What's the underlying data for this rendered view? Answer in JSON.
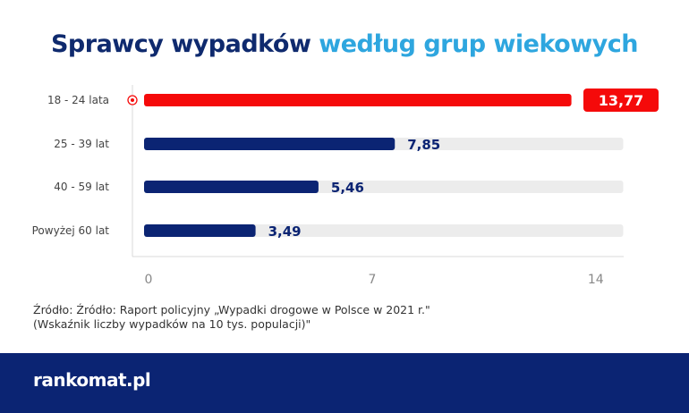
{
  "chart_data": {
    "type": "bar",
    "orientation": "horizontal",
    "title_part1": "Sprawcy wypadków",
    "title_part2": "według grup wiekowych",
    "categories": [
      "18 - 24 lata",
      "25 - 39 lat",
      "40 - 59 lat",
      "Powyżej 60 lat"
    ],
    "values": [
      13.77,
      7.85,
      5.46,
      3.49
    ],
    "value_labels": [
      "13,77",
      "7,85",
      "5,46",
      "3,49"
    ],
    "highlighted_index": 0,
    "xticks": [
      0,
      7,
      14
    ],
    "xlim": [
      0,
      15
    ],
    "colors": {
      "highlight": "#f50a0a",
      "bar": "#0b2473",
      "track": "#ececec",
      "axis": "#d9d9d9"
    }
  },
  "source": {
    "line1": "Źródło: Źródło: Raport policyjny „Wypadki drogowe w Polsce w 2021 r.\"",
    "line2": "(Wskaźnik liczby wypadków na 10 tys. populacji)\""
  },
  "footer": {
    "logo": "rankomat.pl"
  }
}
